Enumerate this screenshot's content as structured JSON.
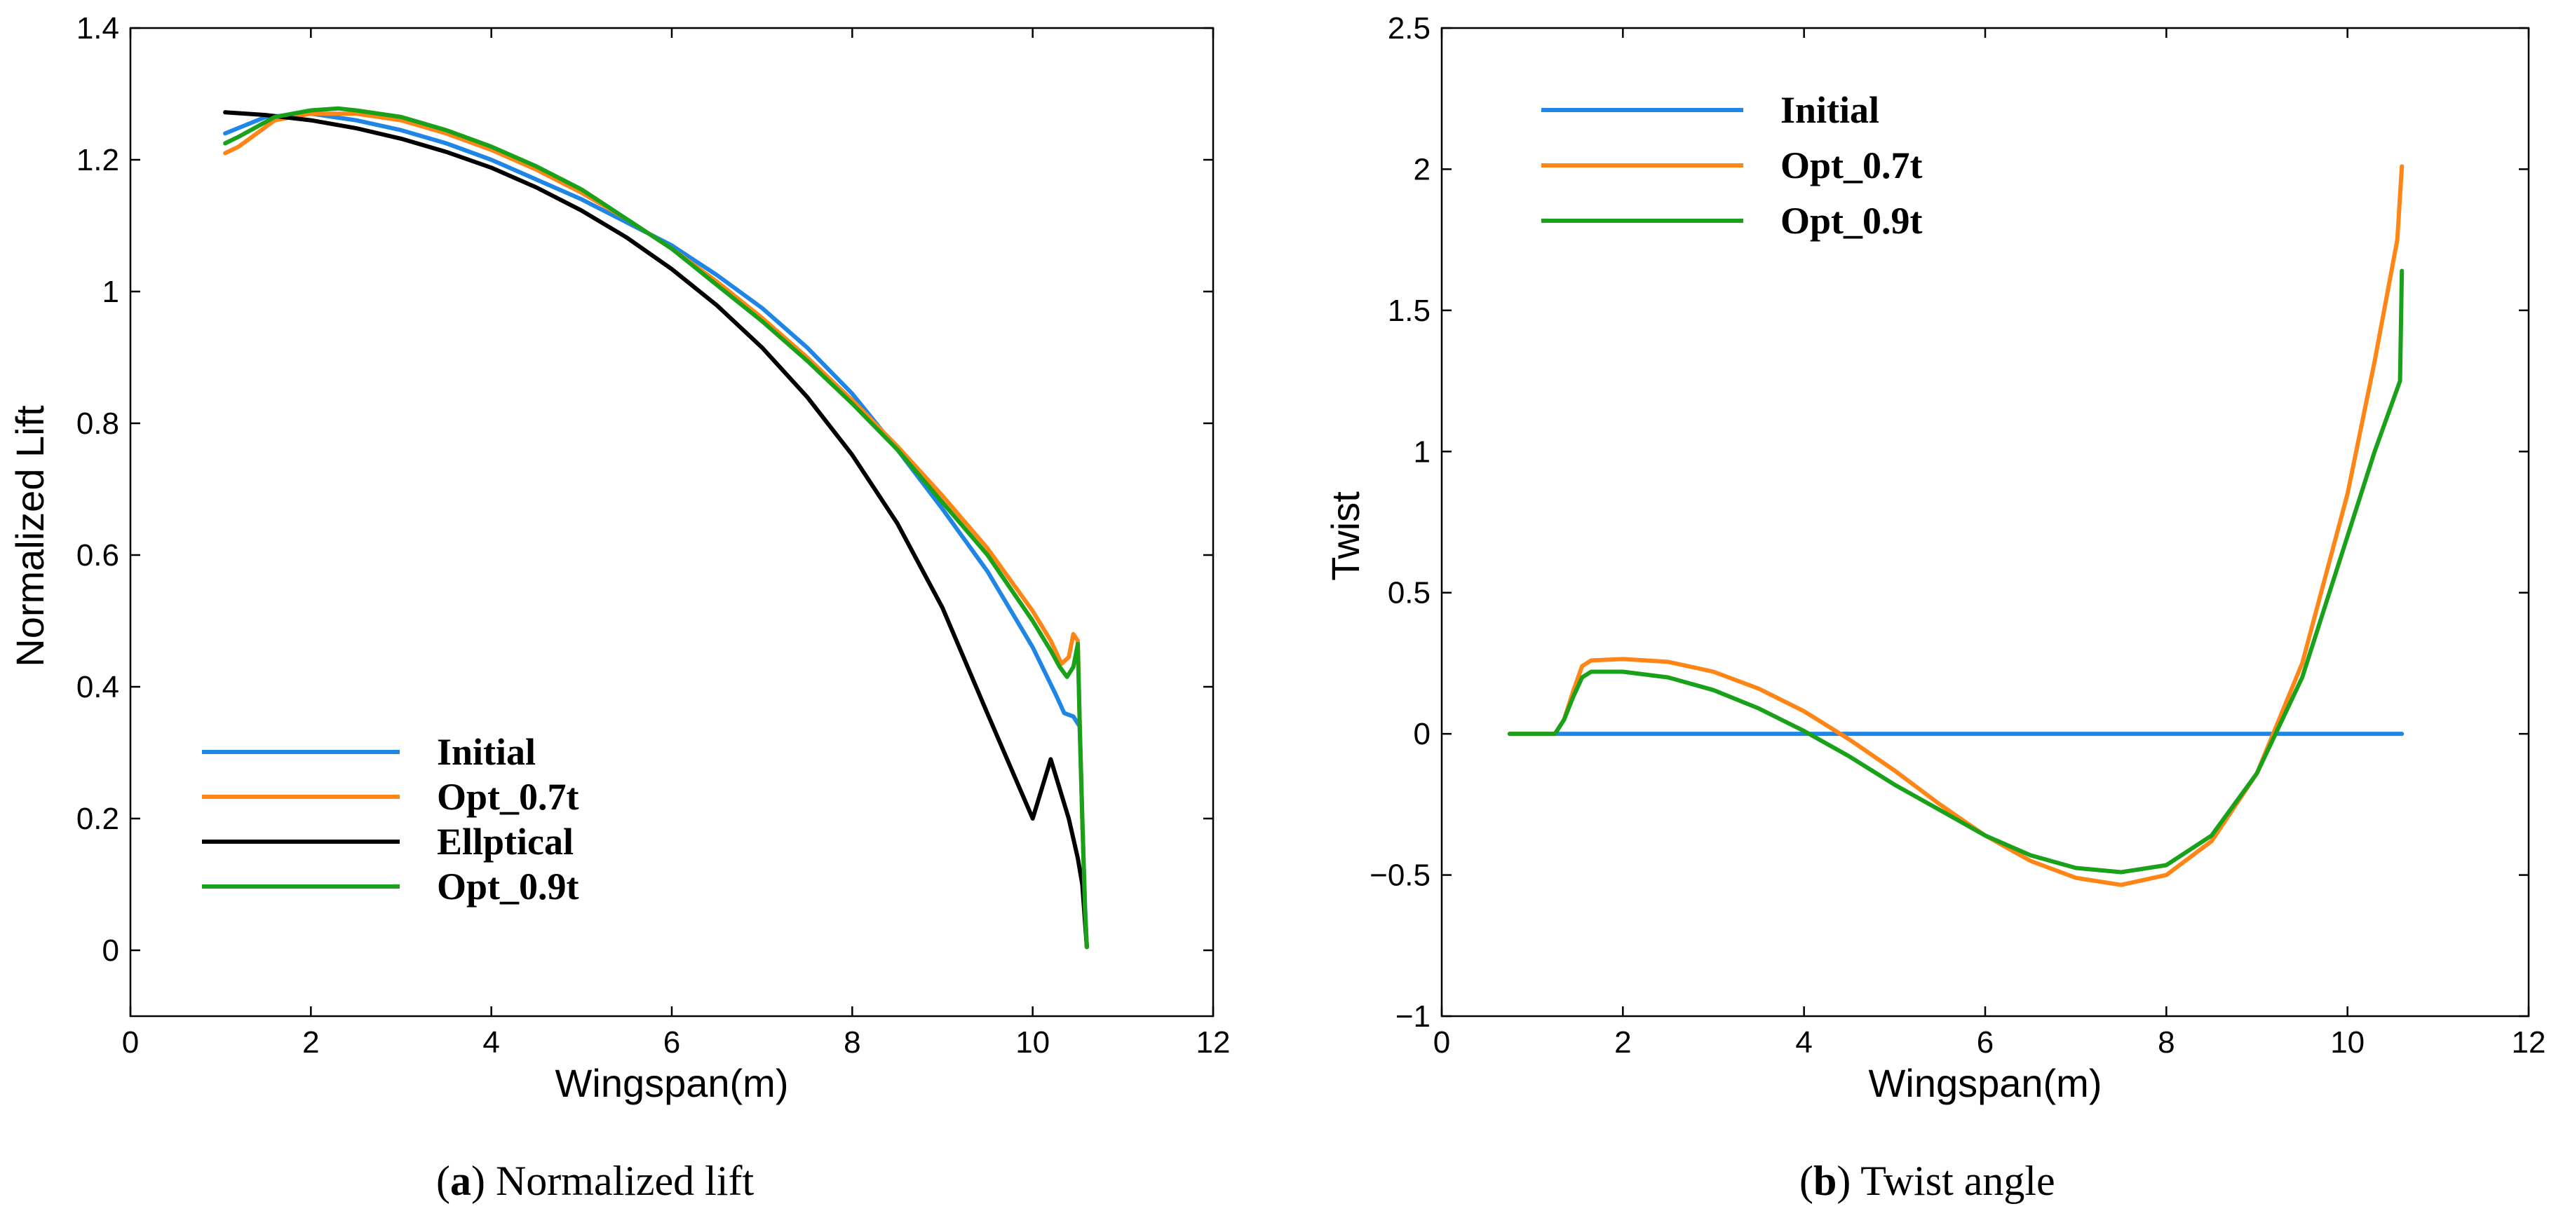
{
  "chart_data": [
    {
      "id": "a",
      "type": "line",
      "caption_tag": "(a)",
      "caption_tag_letter": "a",
      "caption_text": "Normalized lift",
      "xlabel": "Wingspan(m)",
      "ylabel": "Normalized Lift",
      "xlim": [
        0,
        12
      ],
      "ylim": [
        -0.1,
        1.4
      ],
      "xticks": [
        0,
        2,
        4,
        6,
        8,
        10,
        12
      ],
      "yticks": [
        0,
        0.2,
        0.4,
        0.6,
        0.8,
        1,
        1.2,
        1.4
      ],
      "xtick_labels": [
        "0",
        "2",
        "4",
        "6",
        "8",
        "10",
        "12"
      ],
      "ytick_labels": [
        "0",
        "0.2",
        "0.4",
        "0.6",
        "0.8",
        "1",
        "1.2",
        "1.4"
      ],
      "grid": false,
      "legend_position": "bottom-left",
      "series": [
        {
          "name": "Initial",
          "color": "#1f86e6",
          "x": [
            1.05,
            1.5,
            2.0,
            2.5,
            3.0,
            3.5,
            4.0,
            4.5,
            5.0,
            5.5,
            6.0,
            6.5,
            7.0,
            7.5,
            8.0,
            8.5,
            9.0,
            9.5,
            10.0,
            10.25,
            10.35,
            10.45,
            10.52,
            10.55,
            10.58,
            10.6
          ],
          "y": [
            1.24,
            1.265,
            1.27,
            1.26,
            1.245,
            1.225,
            1.2,
            1.17,
            1.14,
            1.105,
            1.07,
            1.025,
            0.975,
            0.915,
            0.845,
            0.76,
            0.67,
            0.575,
            0.46,
            0.39,
            0.36,
            0.355,
            0.34,
            0.2,
            0.07,
            0.005
          ]
        },
        {
          "name": "Opt_0.7t",
          "color": "#ff8616",
          "x": [
            1.05,
            1.2,
            1.4,
            1.6,
            1.8,
            2.0,
            2.5,
            3.0,
            3.5,
            4.0,
            4.5,
            5.0,
            5.5,
            6.0,
            6.5,
            7.0,
            7.5,
            8.0,
            8.5,
            9.0,
            9.5,
            10.0,
            10.2,
            10.32,
            10.4,
            10.45,
            10.5,
            10.52,
            10.55,
            10.58,
            10.6
          ],
          "y": [
            1.21,
            1.22,
            1.24,
            1.26,
            1.265,
            1.27,
            1.27,
            1.26,
            1.24,
            1.215,
            1.185,
            1.15,
            1.11,
            1.065,
            1.015,
            0.96,
            0.9,
            0.835,
            0.765,
            0.69,
            0.61,
            0.515,
            0.47,
            0.435,
            0.445,
            0.48,
            0.47,
            0.35,
            0.2,
            0.06,
            0.005
          ]
        },
        {
          "name": "Ellptical",
          "color": "#000000",
          "x": [
            1.05,
            1.5,
            2.0,
            2.5,
            3.0,
            3.5,
            4.0,
            4.5,
            5.0,
            5.5,
            6.0,
            6.5,
            7.0,
            7.5,
            8.0,
            8.5,
            9.0,
            9.5,
            10.0,
            10.2,
            10.4,
            10.5,
            10.55,
            10.6
          ],
          "y": [
            1.272,
            1.268,
            1.26,
            1.248,
            1.232,
            1.212,
            1.188,
            1.158,
            1.123,
            1.082,
            1.034,
            0.979,
            0.915,
            0.84,
            0.752,
            0.648,
            0.52,
            0.359,
            0.2,
            0.29,
            0.2,
            0.14,
            0.1,
            0.005
          ]
        },
        {
          "name": "Opt_0.9t",
          "color": "#1aa11a",
          "x": [
            1.05,
            1.2,
            1.4,
            1.6,
            1.8,
            2.0,
            2.3,
            2.5,
            3.0,
            3.5,
            4.0,
            4.5,
            5.0,
            5.5,
            6.0,
            6.5,
            7.0,
            7.5,
            8.0,
            8.5,
            9.0,
            9.5,
            10.0,
            10.2,
            10.3,
            10.38,
            10.45,
            10.5,
            10.52,
            10.55,
            10.58,
            10.6
          ],
          "y": [
            1.225,
            1.235,
            1.25,
            1.265,
            1.27,
            1.275,
            1.278,
            1.275,
            1.265,
            1.245,
            1.22,
            1.19,
            1.155,
            1.11,
            1.065,
            1.01,
            0.955,
            0.895,
            0.83,
            0.76,
            0.68,
            0.6,
            0.5,
            0.455,
            0.43,
            0.415,
            0.43,
            0.465,
            0.35,
            0.2,
            0.06,
            0.005
          ]
        }
      ]
    },
    {
      "id": "b",
      "type": "line",
      "caption_tag": "(b)",
      "caption_tag_letter": "b",
      "caption_text": "Twist angle",
      "xlabel": "Wingspan(m)",
      "ylabel": "Twist",
      "xlim": [
        0,
        12
      ],
      "ylim": [
        -1,
        2.5
      ],
      "xticks": [
        0,
        2,
        4,
        6,
        8,
        10,
        12
      ],
      "yticks": [
        -1,
        -0.5,
        0,
        0.5,
        1,
        1.5,
        2,
        2.5
      ],
      "xtick_labels": [
        "0",
        "2",
        "4",
        "6",
        "8",
        "10",
        "12"
      ],
      "ytick_labels": [
        "−1",
        "−0.5",
        "0",
        "0.5",
        "1",
        "1.5",
        "2",
        "2.5"
      ],
      "grid": false,
      "legend_position": "top-left",
      "series": [
        {
          "name": "Initial",
          "color": "#1f86e6",
          "x": [
            0.75,
            10.6
          ],
          "y": [
            0,
            0
          ]
        },
        {
          "name": "Opt_0.7t",
          "color": "#ff8616",
          "x": [
            0.75,
            1.25,
            1.35,
            1.45,
            1.55,
            1.65,
            2.0,
            2.5,
            3.0,
            3.5,
            4.0,
            4.5,
            5.0,
            5.5,
            6.0,
            6.5,
            7.0,
            7.5,
            8.0,
            8.5,
            9.0,
            9.5,
            10.0,
            10.3,
            10.55,
            10.6
          ],
          "y": [
            0,
            0,
            0.05,
            0.15,
            0.24,
            0.26,
            0.265,
            0.255,
            0.22,
            0.16,
            0.08,
            -0.02,
            -0.13,
            -0.25,
            -0.36,
            -0.45,
            -0.51,
            -0.535,
            -0.5,
            -0.38,
            -0.14,
            0.25,
            0.85,
            1.32,
            1.75,
            2.01
          ]
        },
        {
          "name": "Opt_0.9t",
          "color": "#1aa11a",
          "x": [
            0.75,
            1.25,
            1.35,
            1.45,
            1.55,
            1.65,
            2.0,
            2.5,
            3.0,
            3.5,
            4.0,
            4.5,
            5.0,
            5.5,
            6.0,
            6.5,
            7.0,
            7.5,
            8.0,
            8.5,
            9.0,
            9.5,
            10.0,
            10.3,
            10.58,
            10.6
          ],
          "y": [
            0,
            0,
            0.05,
            0.13,
            0.2,
            0.22,
            0.22,
            0.2,
            0.155,
            0.09,
            0.01,
            -0.08,
            -0.18,
            -0.27,
            -0.36,
            -0.43,
            -0.475,
            -0.49,
            -0.465,
            -0.36,
            -0.14,
            0.2,
            0.7,
            1.0,
            1.25,
            1.64
          ]
        }
      ]
    }
  ]
}
